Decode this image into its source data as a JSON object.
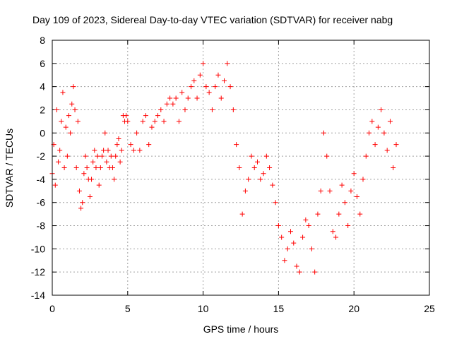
{
  "chart_data": {
    "type": "scatter",
    "title": "Day 109 of 2023, Sidereal Day-to-day VTEC variation (SDTVAR) for receiver nabg",
    "xlabel": "GPS time / hours",
    "ylabel": "SDTVAR / TECUs",
    "xlim": [
      0,
      25
    ],
    "ylim": [
      -14,
      8
    ],
    "xticks": [
      0,
      5,
      10,
      15,
      20,
      25
    ],
    "yticks": [
      -14,
      -12,
      -10,
      -8,
      -6,
      -4,
      -2,
      0,
      2,
      4,
      6,
      8
    ],
    "grid": true,
    "marker": "+",
    "color": "#ff0000",
    "series": [
      {
        "x": [
          0.0,
          0.1,
          0.2,
          0.3,
          0.4,
          0.5,
          0.6,
          0.7,
          0.8,
          0.9,
          1.0,
          1.1,
          1.2,
          1.3,
          1.4,
          1.5,
          1.6,
          1.7,
          1.8,
          1.9,
          2.0,
          2.1,
          2.2,
          2.3,
          2.4,
          2.5,
          2.6,
          2.7,
          2.8,
          2.9,
          3.0,
          3.1,
          3.2,
          3.3,
          3.4,
          3.5,
          3.6,
          3.7,
          3.8,
          3.9,
          4.0,
          4.1,
          4.2,
          4.3,
          4.4,
          4.5,
          4.6,
          4.7,
          4.8,
          4.9,
          5.0,
          5.2,
          5.4,
          5.6,
          5.8,
          6.0,
          6.2,
          6.4,
          6.6,
          6.8,
          7.0,
          7.2,
          7.4,
          7.6,
          7.8,
          8.0,
          8.2,
          8.4,
          8.6,
          8.8,
          9.0,
          9.2,
          9.4,
          9.6,
          9.8,
          10.0,
          10.2,
          10.4,
          10.6,
          10.8,
          11.0,
          11.2,
          11.4,
          11.6,
          11.8,
          12.0,
          12.2,
          12.4,
          12.6,
          12.8,
          13.0,
          13.2,
          13.4,
          13.6,
          13.8,
          14.0,
          14.2,
          14.4,
          14.6,
          14.8,
          15.0,
          15.2,
          15.4,
          15.6,
          15.8,
          16.0,
          16.2,
          16.4,
          16.6,
          16.8,
          17.0,
          17.2,
          17.4,
          17.6,
          17.8,
          18.0,
          18.2,
          18.4,
          18.6,
          18.8,
          19.0,
          19.2,
          19.4,
          19.6,
          19.8,
          20.0,
          20.2,
          20.4,
          20.6,
          20.8,
          21.0,
          21.2,
          21.4,
          21.6,
          21.8,
          22.0,
          22.2,
          22.4,
          22.6,
          22.8
        ],
        "y": [
          -3.5,
          -1.0,
          -4.5,
          2.0,
          -2.5,
          -1.5,
          1.0,
          3.5,
          -3.0,
          0.5,
          -2.0,
          1.5,
          0.0,
          2.5,
          4.0,
          2.0,
          -3.0,
          1.0,
          -5.0,
          -6.5,
          -6.0,
          -3.5,
          -2.0,
          -3.0,
          -4.0,
          -5.5,
          -4.0,
          -2.5,
          -1.5,
          -3.0,
          -2.0,
          -4.5,
          -3.0,
          -2.0,
          -1.5,
          0.0,
          -2.5,
          -1.5,
          -3.0,
          -2.0,
          -3.0,
          -4.0,
          -2.0,
          -1.0,
          -0.5,
          -2.5,
          -1.5,
          1.5,
          1.0,
          1.5,
          1.0,
          -1.0,
          -1.5,
          0.0,
          -1.5,
          1.0,
          1.5,
          -1.0,
          0.5,
          1.0,
          1.5,
          2.0,
          1.0,
          2.5,
          3.0,
          2.5,
          3.0,
          1.0,
          3.5,
          2.0,
          3.0,
          4.0,
          4.5,
          3.0,
          5.0,
          6.0,
          4.0,
          3.5,
          2.0,
          4.0,
          5.0,
          3.0,
          4.5,
          6.0,
          4.0,
          2.0,
          -1.0,
          -3.0,
          -7.0,
          -5.0,
          -4.0,
          -2.0,
          -3.0,
          -2.5,
          -4.0,
          -3.5,
          -2.0,
          -3.0,
          -4.5,
          -6.0,
          -8.0,
          -9.0,
          -11.0,
          -10.0,
          -8.5,
          -9.5,
          -11.5,
          -12.0,
          -9.0,
          -7.5,
          -8.0,
          -10.0,
          -12.0,
          -7.0,
          -5.0,
          0.0,
          -2.0,
          -5.0,
          -8.5,
          -9.0,
          -7.0,
          -4.5,
          -6.0,
          -8.0,
          -5.0,
          -3.5,
          -5.5,
          -7.0,
          -4.0,
          -2.0,
          0.0,
          1.0,
          -1.0,
          0.5,
          2.0,
          0.0,
          -1.5,
          1.0,
          -3.0,
          -1.0
        ]
      }
    ]
  }
}
